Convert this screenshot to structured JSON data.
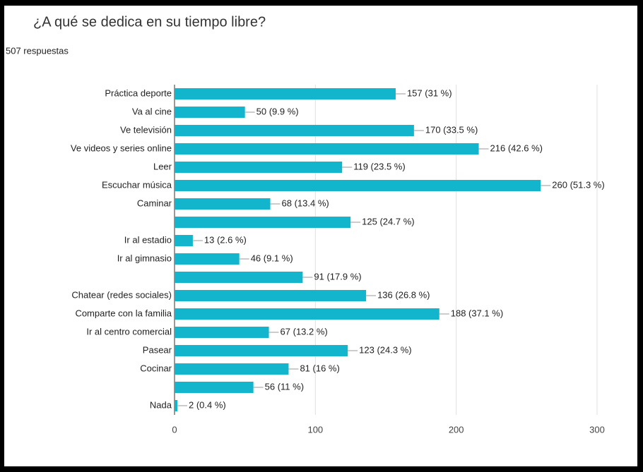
{
  "chart_data": {
    "type": "bar",
    "orientation": "horizontal",
    "title": "¿A qué se dedica en su tiempo libre?",
    "subtitle": "507 respuestas",
    "categories": [
      "Práctica deporte",
      "Va al cine",
      "Ve televisión",
      "Ve videos y series online",
      "Leer",
      "Escuchar música",
      "Caminar",
      null,
      "Ir al estadio",
      "Ir al gimnasio",
      null,
      "Chatear (redes sociales)",
      "Comparte con la familia",
      "Ir al centro comercial",
      "Pasear",
      "Cocinar",
      null,
      "Nada"
    ],
    "values": [
      157,
      50,
      170,
      216,
      119,
      260,
      68,
      125,
      13,
      46,
      91,
      136,
      188,
      67,
      123,
      81,
      56,
      2
    ],
    "value_labels": [
      "157 (31 %)",
      "50 (9.9 %)",
      "170 (33.5 %)",
      "216 (42.6 %)",
      "119 (23.5 %)",
      "260 (51.3 %)",
      "68 (13.4 %)",
      "125 (24.7 %)",
      "13 (2.6 %)",
      "46 (9.1 %)",
      "91 (17.9 %)",
      "136 (26.8 %)",
      "188 (37.1 %)",
      "67 (13.2 %)",
      "123 (24.3 %)",
      "81 (16 %)",
      "56 (11 %)",
      "2 (0.4 %)"
    ],
    "color": "#12b5cb",
    "xlim": [
      0,
      300
    ],
    "xticks": [
      0,
      100,
      200,
      300
    ],
    "grid": true
  }
}
